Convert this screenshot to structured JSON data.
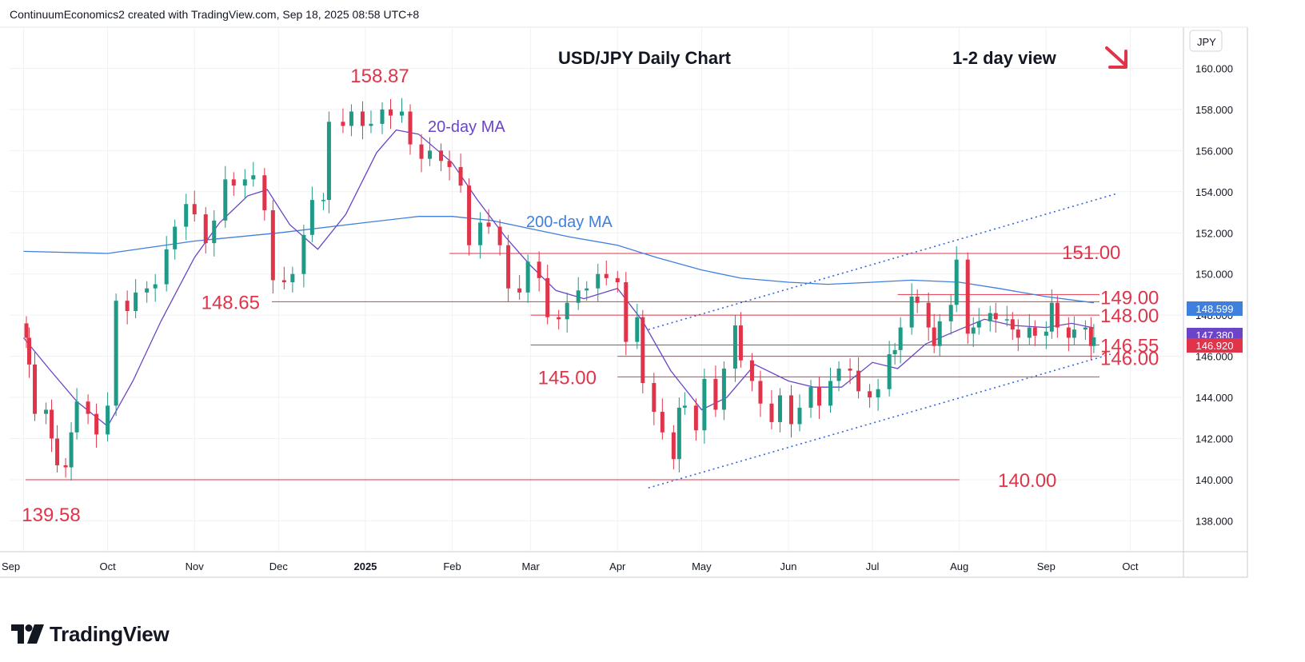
{
  "header": {
    "text": "ContinuumEconomics2 created with TradingView.com, Sep 18, 2025 08:58 UTC+8"
  },
  "footer": {
    "logo_text": "TradingView"
  },
  "colors": {
    "up": "#1e9a86",
    "down": "#e0344a",
    "ma20": "#6b44c7",
    "ma200": "#3f7fde",
    "level": "#e0344a",
    "channel": "#3566d6"
  },
  "chart_data": {
    "type": "candlestick",
    "title": "USD/JPY Daily Chart",
    "view_label": "1-2 day view",
    "view_icon": "down-right-arrow-icon",
    "currency": "JPY",
    "y_axis": {
      "range": [
        136.5,
        162.0
      ],
      "ticks": [
        "160.000",
        "158.000",
        "156.000",
        "154.000",
        "152.000",
        "150.000",
        "148.000",
        "146.000",
        "144.000",
        "142.000",
        "140.000",
        "138.000"
      ]
    },
    "x_axis": {
      "ticks": [
        "Sep",
        "Oct",
        "Nov",
        "Dec",
        "2025",
        "Feb",
        "Mar",
        "Apr",
        "May",
        "Jun",
        "Jul",
        "Aug",
        "Sep",
        "Oct"
      ]
    },
    "price_badges": [
      {
        "value": "148.599",
        "color": "#3f7fde"
      },
      {
        "value": "147.380",
        "color": "#6b44c7"
      },
      {
        "value": "146.920",
        "color": "#e0344a"
      }
    ],
    "annotations": [
      {
        "text": "20-day MA",
        "color": "#6b44c7"
      },
      {
        "text": "200-day MA",
        "color": "#3f7fde"
      },
      {
        "text": "158.87",
        "color": "#e0344a"
      },
      {
        "text": "139.58",
        "color": "#e0344a"
      }
    ],
    "levels": [
      {
        "value": 151.0,
        "label": "151.00",
        "from": "2025-01-31",
        "to": "2025-09-20"
      },
      {
        "value": 149.0,
        "label": "149.00",
        "from": "2025-07-10",
        "to": "2025-09-20"
      },
      {
        "value": 148.65,
        "label": "148.65",
        "from": "2024-11-30",
        "to": "2025-09-20"
      },
      {
        "value": 148.0,
        "label": "148.00",
        "from": "2025-03-01",
        "to": "2025-09-20"
      },
      {
        "value": 146.55,
        "label": "146.55",
        "from": "2025-03-01",
        "to": "2025-09-20"
      },
      {
        "value": 146.0,
        "label": "146.00",
        "from": "2025-04-01",
        "to": "2025-09-20"
      },
      {
        "value": 145.0,
        "label": "145.00",
        "from": "2025-04-01",
        "to": "2025-09-20"
      },
      {
        "value": 140.0,
        "label": "140.00",
        "from": "2024-09-05",
        "to": "2025-08-01"
      }
    ],
    "channel": {
      "upper": [
        [
          "2025-04-12",
          147.3
        ],
        [
          "2025-09-26",
          153.9
        ]
      ],
      "lower": [
        [
          "2025-04-12",
          139.6
        ],
        [
          "2025-09-24",
          146.1
        ]
      ]
    },
    "ma20": [
      [
        "2024-09-01",
        146.9
      ],
      [
        "2024-09-10",
        145.4
      ],
      [
        "2024-09-20",
        143.8
      ],
      [
        "2024-10-01",
        142.6
      ],
      [
        "2024-10-10",
        144.8
      ],
      [
        "2024-10-20",
        147.7
      ],
      [
        "2024-11-01",
        150.8
      ],
      [
        "2024-11-10",
        152.5
      ],
      [
        "2024-11-20",
        153.8
      ],
      [
        "2024-11-27",
        154.1
      ],
      [
        "2024-12-05",
        152.4
      ],
      [
        "2024-12-15",
        151.2
      ],
      [
        "2024-12-25",
        152.9
      ],
      [
        "2025-01-05",
        155.9
      ],
      [
        "2025-01-12",
        157.0
      ],
      [
        "2025-01-20",
        156.8
      ],
      [
        "2025-02-01",
        155.4
      ],
      [
        "2025-02-10",
        153.6
      ],
      [
        "2025-02-20",
        151.8
      ],
      [
        "2025-03-01",
        150.4
      ],
      [
        "2025-03-10",
        149.2
      ],
      [
        "2025-03-20",
        148.8
      ],
      [
        "2025-04-01",
        149.3
      ],
      [
        "2025-04-10",
        147.7
      ],
      [
        "2025-04-20",
        145.3
      ],
      [
        "2025-05-01",
        143.4
      ],
      [
        "2025-05-10",
        144.0
      ],
      [
        "2025-05-20",
        145.6
      ],
      [
        "2025-06-01",
        144.8
      ],
      [
        "2025-06-10",
        144.5
      ],
      [
        "2025-06-20",
        144.5
      ],
      [
        "2025-07-01",
        145.7
      ],
      [
        "2025-07-10",
        145.4
      ],
      [
        "2025-07-20",
        146.6
      ],
      [
        "2025-08-01",
        147.3
      ],
      [
        "2025-08-10",
        147.8
      ],
      [
        "2025-08-20",
        147.5
      ],
      [
        "2025-09-01",
        147.4
      ],
      [
        "2025-09-10",
        147.6
      ],
      [
        "2025-09-18",
        147.38
      ]
    ],
    "ma200": [
      [
        "2024-09-01",
        151.1
      ],
      [
        "2024-10-01",
        151.0
      ],
      [
        "2024-11-01",
        151.6
      ],
      [
        "2024-12-01",
        152.0
      ],
      [
        "2025-01-01",
        152.5
      ],
      [
        "2025-01-20",
        152.8
      ],
      [
        "2025-02-01",
        152.8
      ],
      [
        "2025-02-15",
        152.6
      ],
      [
        "2025-03-01",
        152.2
      ],
      [
        "2025-03-15",
        151.8
      ],
      [
        "2025-04-01",
        151.4
      ],
      [
        "2025-04-15",
        150.8
      ],
      [
        "2025-05-01",
        150.2
      ],
      [
        "2025-05-15",
        149.8
      ],
      [
        "2025-06-01",
        149.6
      ],
      [
        "2025-06-15",
        149.5
      ],
      [
        "2025-07-01",
        149.6
      ],
      [
        "2025-07-15",
        149.7
      ],
      [
        "2025-08-01",
        149.6
      ],
      [
        "2025-08-15",
        149.3
      ],
      [
        "2025-09-01",
        148.9
      ],
      [
        "2025-09-18",
        148.6
      ]
    ],
    "candles": [
      [
        "2024-09-02",
        146.9
      ],
      [
        "2024-09-03",
        145.6
      ],
      [
        "2024-09-05",
        143.2
      ],
      [
        "2024-09-09",
        143.4
      ],
      [
        "2024-09-11",
        142.0
      ],
      [
        "2024-09-13",
        140.7
      ],
      [
        "2024-09-16",
        140.6
      ],
      [
        "2024-09-18",
        142.3
      ],
      [
        "2024-09-20",
        143.8
      ],
      [
        "2024-09-24",
        143.2
      ],
      [
        "2024-09-27",
        142.2
      ],
      [
        "2024-10-01",
        143.6
      ],
      [
        "2024-10-04",
        148.7
      ],
      [
        "2024-10-08",
        148.2
      ],
      [
        "2024-10-11",
        149.1
      ],
      [
        "2024-10-15",
        149.3
      ],
      [
        "2024-10-18",
        149.5
      ],
      [
        "2024-10-22",
        151.2
      ],
      [
        "2024-10-25",
        152.3
      ],
      [
        "2024-10-29",
        153.4
      ],
      [
        "2024-11-01",
        152.9
      ],
      [
        "2024-11-05",
        151.5
      ],
      [
        "2024-11-08",
        152.6
      ],
      [
        "2024-11-12",
        154.6
      ],
      [
        "2024-11-15",
        154.3
      ],
      [
        "2024-11-19",
        154.6
      ],
      [
        "2024-11-22",
        154.8
      ],
      [
        "2024-11-26",
        153.1
      ],
      [
        "2024-11-29",
        149.7
      ],
      [
        "2024-12-03",
        149.6
      ],
      [
        "2024-12-06",
        150.0
      ],
      [
        "2024-12-10",
        151.9
      ],
      [
        "2024-12-13",
        153.6
      ],
      [
        "2024-12-17",
        153.6
      ],
      [
        "2024-12-19",
        157.4
      ],
      [
        "2024-12-24",
        157.2
      ],
      [
        "2024-12-27",
        157.9
      ],
      [
        "2024-12-31",
        157.2
      ],
      [
        "2025-01-03",
        157.3
      ],
      [
        "2025-01-07",
        158.0
      ],
      [
        "2025-01-10",
        157.7
      ],
      [
        "2025-01-14",
        157.9
      ],
      [
        "2025-01-17",
        156.3
      ],
      [
        "2025-01-21",
        155.6
      ],
      [
        "2025-01-24",
        156.0
      ],
      [
        "2025-01-28",
        155.5
      ],
      [
        "2025-01-31",
        155.2
      ],
      [
        "2025-02-04",
        154.3
      ],
      [
        "2025-02-07",
        151.4
      ],
      [
        "2025-02-11",
        152.5
      ],
      [
        "2025-02-14",
        152.3
      ],
      [
        "2025-02-18",
        151.4
      ],
      [
        "2025-02-21",
        149.3
      ],
      [
        "2025-02-25",
        149.1
      ],
      [
        "2025-02-28",
        150.6
      ],
      [
        "2025-03-04",
        149.8
      ],
      [
        "2025-03-07",
        147.9
      ],
      [
        "2025-03-11",
        147.8
      ],
      [
        "2025-03-14",
        148.6
      ],
      [
        "2025-03-18",
        149.2
      ],
      [
        "2025-03-21",
        149.3
      ],
      [
        "2025-03-25",
        150.0
      ],
      [
        "2025-03-28",
        149.8
      ],
      [
        "2025-04-01",
        149.6
      ],
      [
        "2025-04-04",
        146.7
      ],
      [
        "2025-04-08",
        147.9
      ],
      [
        "2025-04-10",
        144.7
      ],
      [
        "2025-04-14",
        143.3
      ],
      [
        "2025-04-17",
        142.3
      ],
      [
        "2025-04-21",
        141.0
      ],
      [
        "2025-04-23",
        143.5
      ],
      [
        "2025-04-25",
        143.6
      ],
      [
        "2025-04-29",
        142.4
      ],
      [
        "2025-05-02",
        144.9
      ],
      [
        "2025-05-06",
        143.4
      ],
      [
        "2025-05-09",
        145.4
      ],
      [
        "2025-05-13",
        147.5
      ],
      [
        "2025-05-15",
        145.8
      ],
      [
        "2025-05-19",
        144.8
      ],
      [
        "2025-05-22",
        143.7
      ],
      [
        "2025-05-26",
        142.8
      ],
      [
        "2025-05-29",
        144.1
      ],
      [
        "2025-06-02",
        142.7
      ],
      [
        "2025-06-05",
        143.5
      ],
      [
        "2025-06-09",
        144.5
      ],
      [
        "2025-06-12",
        143.6
      ],
      [
        "2025-06-16",
        144.8
      ],
      [
        "2025-06-19",
        145.4
      ],
      [
        "2025-06-23",
        145.3
      ],
      [
        "2025-06-26",
        144.3
      ],
      [
        "2025-06-30",
        144.0
      ],
      [
        "2025-07-03",
        144.4
      ],
      [
        "2025-07-07",
        146.1
      ],
      [
        "2025-07-09",
        146.3
      ],
      [
        "2025-07-11",
        147.4
      ],
      [
        "2025-07-15",
        148.9
      ],
      [
        "2025-07-17",
        148.6
      ],
      [
        "2025-07-21",
        147.4
      ],
      [
        "2025-07-23",
        146.5
      ],
      [
        "2025-07-25",
        147.7
      ],
      [
        "2025-07-29",
        148.5
      ],
      [
        "2025-07-31",
        150.7
      ],
      [
        "2025-08-04",
        147.1
      ],
      [
        "2025-08-06",
        147.4
      ],
      [
        "2025-08-08",
        147.7
      ],
      [
        "2025-08-12",
        148.1
      ],
      [
        "2025-08-14",
        147.8
      ],
      [
        "2025-08-18",
        147.8
      ],
      [
        "2025-08-20",
        147.3
      ],
      [
        "2025-08-22",
        146.9
      ],
      [
        "2025-08-26",
        147.4
      ],
      [
        "2025-08-28",
        147.0
      ],
      [
        "2025-09-01",
        147.2
      ],
      [
        "2025-09-03",
        148.6
      ],
      [
        "2025-09-05",
        147.4
      ],
      [
        "2025-09-09",
        146.9
      ],
      [
        "2025-09-11",
        147.3
      ],
      [
        "2025-09-15",
        147.4
      ],
      [
        "2025-09-17",
        146.5
      ],
      [
        "2025-09-18",
        146.92
      ]
    ]
  }
}
